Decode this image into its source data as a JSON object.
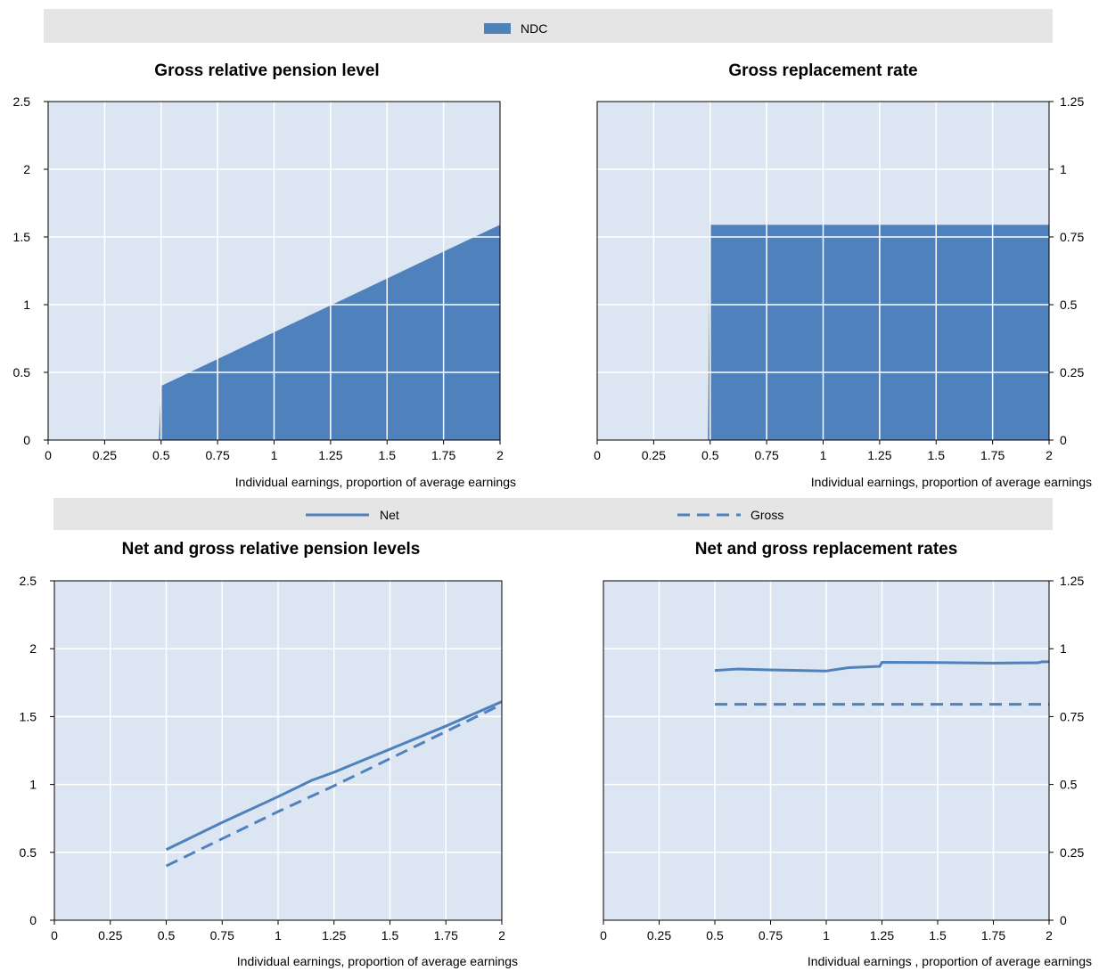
{
  "legend_top": {
    "items": [
      {
        "label": "NDC",
        "color": "#4f81bd"
      }
    ]
  },
  "legend_bottom": {
    "items": [
      {
        "label": "Net",
        "style": "solid",
        "color": "#4f81bd"
      },
      {
        "label": "Gross",
        "style": "dashed",
        "color": "#4f81bd"
      }
    ]
  },
  "chart_data": [
    {
      "type": "area",
      "title": "Gross relative pension level",
      "xlabel": "Individual earnings, proportion of average earnings",
      "ylabel": "",
      "xlim": [
        0,
        2
      ],
      "ylim": [
        0,
        2.5
      ],
      "x_ticks": [
        "0",
        "0.25",
        "0.5",
        "0.75",
        "1",
        "1.25",
        "1.5",
        "1.75",
        "2"
      ],
      "y_ticks": [
        "0",
        "0.5",
        "1",
        "1.5",
        "2",
        "2.5"
      ],
      "y_axis_side": "left",
      "grid": true,
      "series": [
        {
          "name": "NDC",
          "color": "#4f81bd",
          "points": [
            [
              0.49,
              0
            ],
            [
              0.5,
              0.4
            ],
            [
              2.0,
              1.59
            ],
            [
              2.0,
              0
            ]
          ]
        }
      ]
    },
    {
      "type": "area",
      "title": "Gross replacement rate",
      "xlabel": "Individual earnings, proportion of average earnings",
      "ylabel": "",
      "xlim": [
        0,
        2
      ],
      "ylim": [
        0,
        1.25
      ],
      "x_ticks": [
        "0",
        "0.25",
        "0.5",
        "0.75",
        "1",
        "1.25",
        "1.5",
        "1.75",
        "2"
      ],
      "y_ticks": [
        "0",
        "0.25",
        "0.5",
        "0.75",
        "1",
        "1.25"
      ],
      "y_axis_side": "right",
      "grid": true,
      "series": [
        {
          "name": "NDC",
          "color": "#4f81bd",
          "points": [
            [
              0.49,
              0
            ],
            [
              0.5,
              0.795
            ],
            [
              2.0,
              0.795
            ],
            [
              2.0,
              0
            ]
          ]
        }
      ]
    },
    {
      "type": "line",
      "title": "Net and gross relative pension levels",
      "xlabel": "Individual earnings, proportion of average earnings",
      "ylabel": "",
      "xlim": [
        0,
        2
      ],
      "ylim": [
        0,
        2.5
      ],
      "x_ticks": [
        "0",
        "0.25",
        "0.5",
        "0.75",
        "1",
        "1.25",
        "1.5",
        "1.75",
        "2"
      ],
      "y_ticks": [
        "0",
        "0.5",
        "1",
        "1.5",
        "2",
        "2.5"
      ],
      "y_axis_side": "left",
      "grid": true,
      "series": [
        {
          "name": "Net",
          "style": "solid",
          "color": "#4f81bd",
          "points": [
            [
              0.5,
              0.52
            ],
            [
              0.75,
              0.72
            ],
            [
              1.0,
              0.91
            ],
            [
              1.15,
              1.03
            ],
            [
              1.25,
              1.09
            ],
            [
              1.5,
              1.26
            ],
            [
              1.75,
              1.43
            ],
            [
              2.0,
              1.61
            ]
          ]
        },
        {
          "name": "Gross",
          "style": "dashed",
          "color": "#4f81bd",
          "points": [
            [
              0.5,
              0.4
            ],
            [
              0.75,
              0.6
            ],
            [
              1.0,
              0.8
            ],
            [
              1.25,
              0.99
            ],
            [
              1.5,
              1.19
            ],
            [
              1.75,
              1.39
            ],
            [
              2.0,
              1.59
            ]
          ]
        }
      ]
    },
    {
      "type": "line",
      "title": "Net and gross replacement rates",
      "xlabel": "Individual earnings , proportion of average earnings",
      "ylabel": "",
      "xlim": [
        0,
        2
      ],
      "ylim": [
        0,
        1.25
      ],
      "x_ticks": [
        "0",
        "0.25",
        "0.5",
        "0.75",
        "1",
        "1.25",
        "1.5",
        "1.75",
        "2"
      ],
      "y_ticks": [
        "0",
        "0.25",
        "0.5",
        "0.75",
        "1",
        "1.25"
      ],
      "y_axis_side": "right",
      "grid": true,
      "series": [
        {
          "name": "Net",
          "style": "solid",
          "color": "#4f81bd",
          "points": [
            [
              0.5,
              0.92
            ],
            [
              0.6,
              0.925
            ],
            [
              0.75,
              0.922
            ],
            [
              1.0,
              0.918
            ],
            [
              1.1,
              0.93
            ],
            [
              1.24,
              0.935
            ],
            [
              1.25,
              0.95
            ],
            [
              1.5,
              0.949
            ],
            [
              1.75,
              0.947
            ],
            [
              1.95,
              0.948
            ],
            [
              1.97,
              0.952
            ],
            [
              2.0,
              0.952
            ]
          ]
        },
        {
          "name": "Gross",
          "style": "dashed",
          "color": "#4f81bd",
          "points": [
            [
              0.5,
              0.795
            ],
            [
              2.0,
              0.795
            ]
          ]
        }
      ]
    }
  ]
}
